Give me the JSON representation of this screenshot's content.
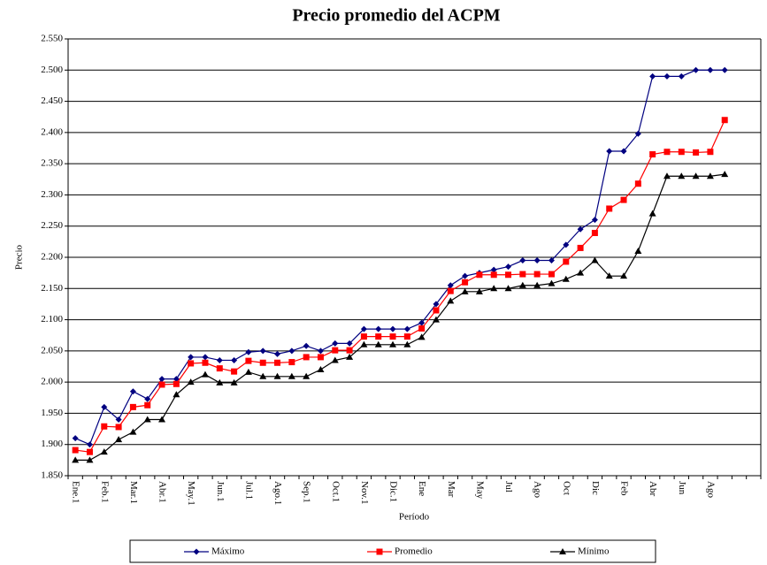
{
  "chart_data": {
    "type": "line",
    "title": "Precio promedio del ACPM",
    "x_label": "Período",
    "y_label": "Precio",
    "categories": [
      "Ene.1",
      null,
      "Feb.1",
      null,
      "Mar.1",
      null,
      "Abr.1",
      null,
      "May.1",
      null,
      "Jun.1",
      null,
      "Jul.1",
      null,
      "Ago.1",
      null,
      "Sep.1",
      null,
      "Oct.1",
      null,
      "Nov.1",
      null,
      "Dic.1",
      null,
      "Ene",
      null,
      "Mar",
      null,
      "May",
      null,
      "Jul",
      null,
      "Ago",
      null,
      "Oct",
      null,
      "Dic",
      null,
      "Feb",
      null,
      "Abr",
      null,
      "Jun",
      null,
      "Ago",
      null,
      null,
      null
    ],
    "series": [
      {
        "name": "Máximo",
        "color": "#000080",
        "marker": "diamond",
        "values": [
          1910,
          1900,
          1960,
          1940,
          1985,
          1973,
          2005,
          2005,
          2040,
          2040,
          2035,
          2035,
          2048,
          2050,
          2045,
          2050,
          2058,
          2050,
          2062,
          2062,
          2085,
          2085,
          2085,
          2085,
          2095,
          2125,
          2155,
          2170,
          2175,
          2180,
          2185,
          2195,
          2195,
          2195,
          2220,
          2245,
          2260,
          2370,
          2370,
          2398,
          2490,
          2490,
          2490,
          2500,
          2500,
          2500,
          null,
          null
        ]
      },
      {
        "name": "Promedio",
        "color": "#ff0000",
        "marker": "square",
        "values": [
          1891,
          1888,
          1929,
          1928,
          1960,
          1963,
          1996,
          1997,
          2030,
          2031,
          2022,
          2017,
          2034,
          2031,
          2031,
          2032,
          2040,
          2040,
          2051,
          2051,
          2073,
          2073,
          2073,
          2073,
          2086,
          2115,
          2146,
          2160,
          2172,
          2172,
          2172,
          2173,
          2173,
          2173,
          2193,
          2215,
          2239,
          2278,
          2292,
          2318,
          2365,
          2369,
          2369,
          2368,
          2369,
          2420,
          null,
          null
        ]
      },
      {
        "name": "Mínimo",
        "color": "#000000",
        "marker": "triangle",
        "values": [
          1875,
          1875,
          1888,
          1908,
          1920,
          1940,
          1940,
          1980,
          2000,
          2012,
          1999,
          1999,
          2016,
          2009,
          2009,
          2009,
          2009,
          2020,
          2035,
          2040,
          2060,
          2060,
          2060,
          2060,
          2072,
          2100,
          2130,
          2145,
          2145,
          2150,
          2150,
          2155,
          2155,
          2158,
          2165,
          2175,
          2195,
          2170,
          2170,
          2210,
          2270,
          2330,
          2330,
          2330,
          2330,
          2333,
          null,
          null
        ]
      }
    ],
    "ylim": [
      1850,
      2550
    ],
    "yticks": [
      {
        "value": 1850,
        "label": "1.850"
      },
      {
        "value": 1900,
        "label": "1.900"
      },
      {
        "value": 1950,
        "label": "1.950"
      },
      {
        "value": 2000,
        "label": "2.000"
      },
      {
        "value": 2050,
        "label": "2.050"
      },
      {
        "value": 2100,
        "label": "2.100"
      },
      {
        "value": 2150,
        "label": "2.150"
      },
      {
        "value": 2200,
        "label": "2.200"
      },
      {
        "value": 2250,
        "label": "2.250"
      },
      {
        "value": 2300,
        "label": "2.300"
      },
      {
        "value": 2350,
        "label": "2.350"
      },
      {
        "value": 2400,
        "label": "2.400"
      },
      {
        "value": 2450,
        "label": "2.450"
      },
      {
        "value": 2500,
        "label": "2.500"
      },
      {
        "value": 2550,
        "label": "2.550"
      }
    ],
    "grid": true,
    "legend": "bottom"
  }
}
